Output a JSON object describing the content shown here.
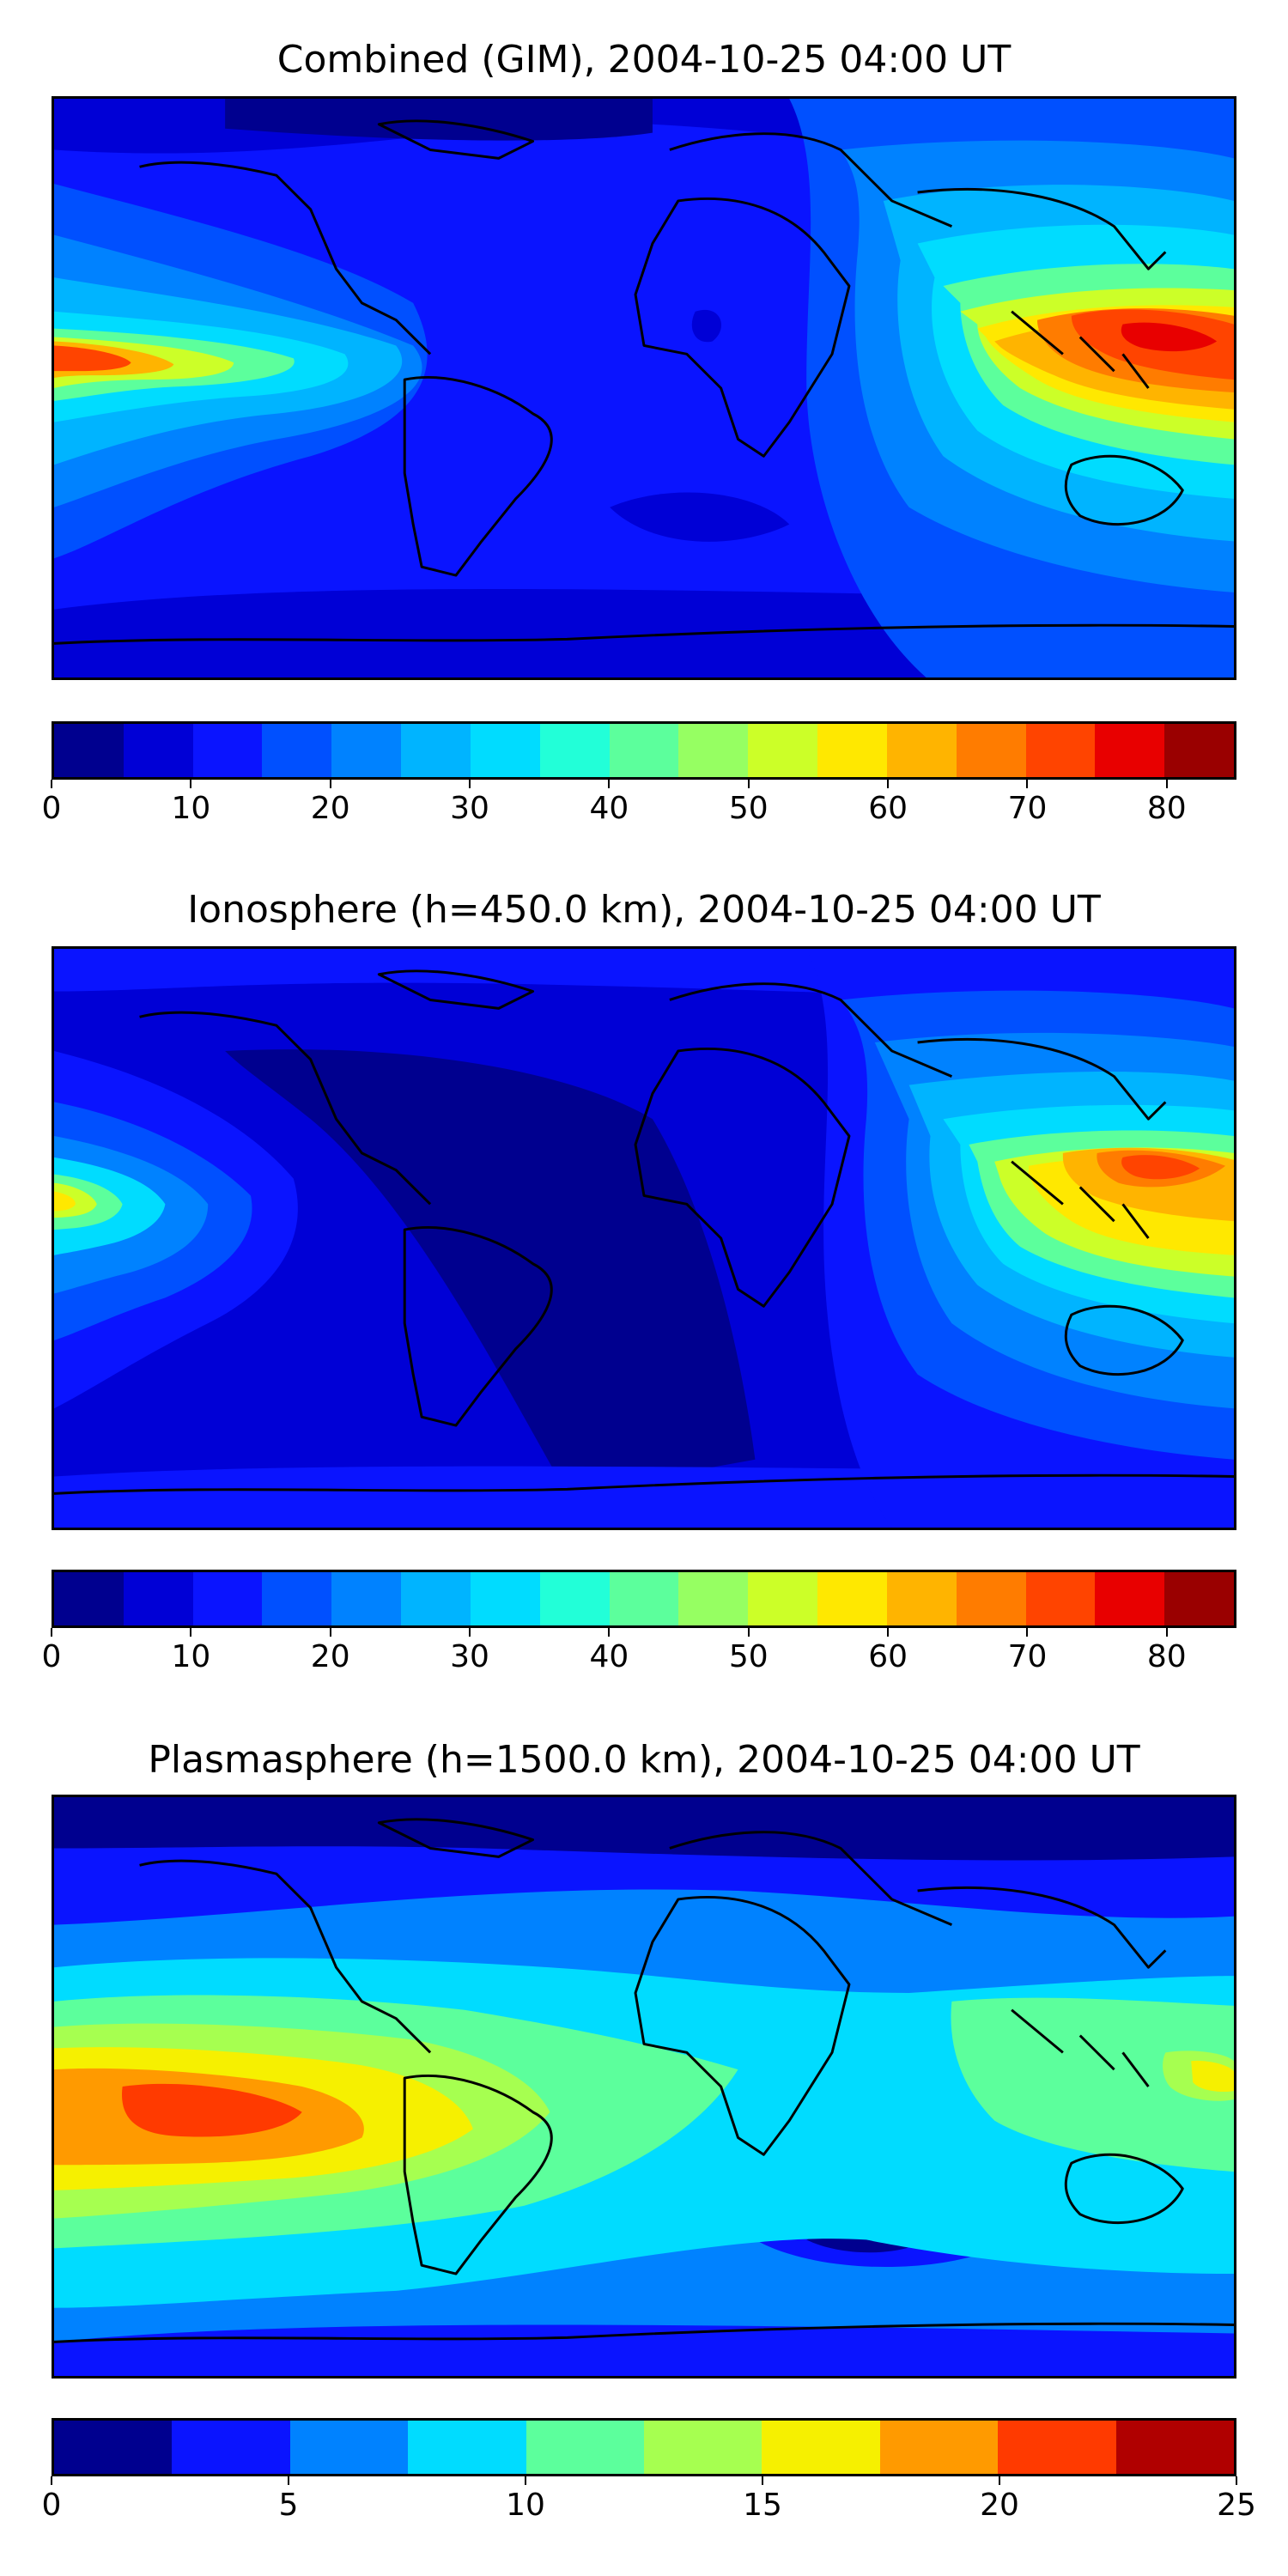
{
  "panels": [
    {
      "title": "Combined (GIM), 2004-10-25 04:00 UT",
      "colorbar": {
        "min": 0,
        "max": 85,
        "step": 5,
        "colors": [
          "#00008f",
          "#0000d6",
          "#0a14ff",
          "#0050ff",
          "#0082ff",
          "#00b4ff",
          "#00dcff",
          "#22ffd8",
          "#5cff9c",
          "#96ff62",
          "#ccff28",
          "#ffe800",
          "#ffb400",
          "#ff7c00",
          "#ff4400",
          "#e80000",
          "#9a0000"
        ],
        "ticks": [
          0,
          10,
          20,
          30,
          40,
          50,
          60,
          70,
          80
        ]
      }
    },
    {
      "title": "Ionosphere  (h=450.0 km), 2004-10-25 04:00 UT",
      "colorbar": {
        "min": 0,
        "max": 85,
        "step": 5,
        "colors": [
          "#00008f",
          "#0000d6",
          "#0a14ff",
          "#0050ff",
          "#0082ff",
          "#00b4ff",
          "#00dcff",
          "#22ffd8",
          "#5cff9c",
          "#96ff62",
          "#ccff28",
          "#ffe800",
          "#ffb400",
          "#ff7c00",
          "#ff4400",
          "#e80000",
          "#9a0000"
        ],
        "ticks": [
          0,
          10,
          20,
          30,
          40,
          50,
          60,
          70,
          80
        ]
      }
    },
    {
      "title": "Plasmasphere (h=1500.0 km), 2004-10-25 04:00 UT",
      "colorbar": {
        "min": 0,
        "max": 25,
        "step": 2.5,
        "colors": [
          "#00008f",
          "#0a14ff",
          "#0082ff",
          "#00dcff",
          "#5cff9c",
          "#a6ff50",
          "#f6f000",
          "#ff9a00",
          "#ff3a00",
          "#b00000"
        ],
        "ticks": [
          0,
          5,
          10,
          15,
          20,
          25
        ]
      }
    }
  ]
}
